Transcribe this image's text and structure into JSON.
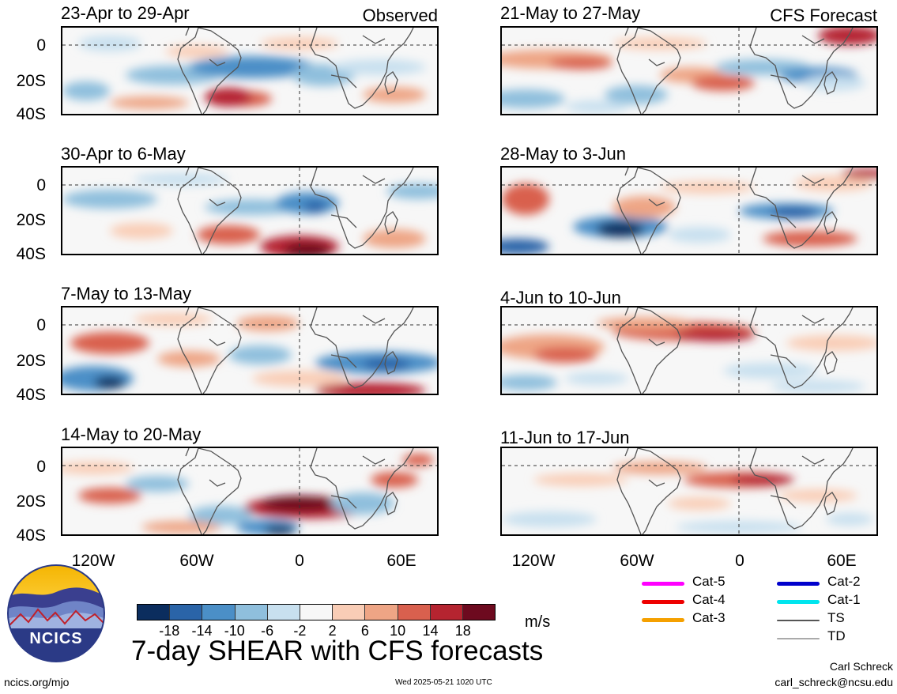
{
  "chart_data": {
    "type": "heatmap",
    "title": "7-day SHEAR with CFS forecasts",
    "units": "m/s",
    "lat_ticks": [
      "0",
      "20S",
      "40S"
    ],
    "lon_ticks": [
      "120W",
      "60W",
      "0",
      "60E"
    ],
    "lat_range": [
      -40,
      10
    ],
    "lon_range": [
      -150,
      80
    ],
    "colorbar": {
      "levels": [
        -18,
        -14,
        -10,
        -6,
        -2,
        2,
        6,
        10,
        14,
        18
      ],
      "labels": [
        "-18",
        "-14",
        "-10",
        "-6",
        "-2",
        "2",
        "6",
        "10",
        "14",
        "18"
      ],
      "colors": [
        "#0b2d5e",
        "#2a64a8",
        "#4b8fc7",
        "#8fbfdd",
        "#c8e0ef",
        "#f7f7f7",
        "#f9cdb6",
        "#eea585",
        "#d9604e",
        "#b52430",
        "#6d0a1f"
      ]
    },
    "panels": [
      {
        "column": "observed",
        "period": "23-Apr to 29-Apr",
        "tag": "Observed"
      },
      {
        "column": "observed",
        "period": "30-Apr to 6-May",
        "tag": ""
      },
      {
        "column": "observed",
        "period": "7-May to 13-May",
        "tag": ""
      },
      {
        "column": "observed",
        "period": "14-May to 20-May",
        "tag": ""
      },
      {
        "column": "forecast",
        "period": "21-May to 27-May",
        "tag": "CFS Forecast"
      },
      {
        "column": "forecast",
        "period": "28-May to 3-Jun",
        "tag": ""
      },
      {
        "column": "forecast",
        "period": "4-Jun to 10-Jun",
        "tag": ""
      },
      {
        "column": "forecast",
        "period": "11-Jun to 17-Jun",
        "tag": ""
      }
    ]
  },
  "legend": {
    "items": [
      {
        "label": "Cat-5",
        "color": "#ff00ff"
      },
      {
        "label": "Cat-4",
        "color": "#ee0000"
      },
      {
        "label": "Cat-3",
        "color": "#f5a000"
      },
      {
        "label": "Cat-2",
        "color": "#0000cc"
      },
      {
        "label": "Cat-1",
        "color": "#00e5ee"
      },
      {
        "label": "TS",
        "color": "#555555"
      },
      {
        "label": "TD",
        "color": "#aaaaaa"
      }
    ]
  },
  "logo": {
    "text": "NCICS"
  },
  "footer": {
    "site": "ncics.org/mjo",
    "timestamp": "Wed 2025-05-21 1020 UTC",
    "author": "Carl Schreck",
    "email": "carl_schreck@ncsu.edu"
  }
}
